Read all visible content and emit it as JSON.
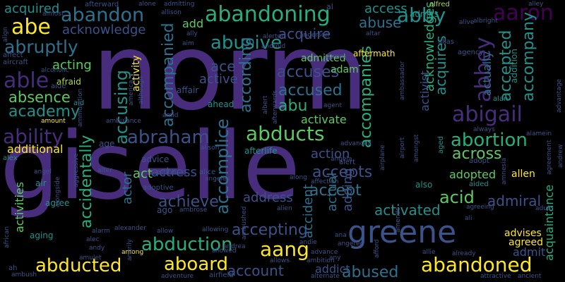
{
  "background": "#000000",
  "palette": {
    "dark_purple": "#440154",
    "indigo": "#472d7b",
    "blue": "#3b528b",
    "slate": "#2c728e",
    "teal": "#21918c",
    "green": "#28ae80",
    "lime": "#5ec962",
    "yellow": "#fde725",
    "olive": "#addc30"
  },
  "words": [
    {
      "text": "norm",
      "color": "#472d7b"
    },
    {
      "text": "giselle",
      "color": "#472d7b"
    },
    {
      "text": "greene",
      "color": "#3b528b"
    },
    {
      "text": "abandoning",
      "color": "#28ae80"
    },
    {
      "text": "abandon",
      "color": "#2c728e"
    },
    {
      "text": "aaron",
      "color": "#440154"
    },
    {
      "text": "abby",
      "color": "#21918c"
    },
    {
      "text": "abe",
      "color": "#fde725"
    },
    {
      "text": "able",
      "color": "#472d7b"
    },
    {
      "text": "abusive",
      "color": "#21918c"
    },
    {
      "text": "abruptly",
      "color": "#2c728e"
    },
    {
      "text": "abuse",
      "color": "#2c728e"
    },
    {
      "text": "absence",
      "color": "#5ec962"
    },
    {
      "text": "academy",
      "color": "#21918c"
    },
    {
      "text": "ability",
      "color": "#472d7b"
    },
    {
      "text": "abraham",
      "color": "#3b528b"
    },
    {
      "text": "abducts",
      "color": "#5ec962"
    },
    {
      "text": "abigail",
      "color": "#472d7b"
    },
    {
      "text": "abortion",
      "color": "#28ae80"
    },
    {
      "text": "abbey",
      "color": "#472d7b"
    },
    {
      "text": "abduction",
      "color": "#28ae80"
    },
    {
      "text": "abducted",
      "color": "#fde725"
    },
    {
      "text": "aboard",
      "color": "#fde725"
    },
    {
      "text": "abandoned",
      "color": "#fde725"
    },
    {
      "text": "aang",
      "color": "#fde725"
    },
    {
      "text": "accusing",
      "color": "#21918c"
    },
    {
      "text": "according",
      "color": "#2c728e"
    },
    {
      "text": "accompanied",
      "color": "#2c728e"
    },
    {
      "text": "accomplice",
      "color": "#2c728e"
    },
    {
      "text": "accuses",
      "color": "#3b528b"
    },
    {
      "text": "accused",
      "color": "#2c728e"
    },
    {
      "text": "abu",
      "color": "#28ae80"
    },
    {
      "text": "accompanies",
      "color": "#28ae80"
    },
    {
      "text": "accompany",
      "color": "#21918c"
    },
    {
      "text": "accepted",
      "color": "#21918c"
    },
    {
      "text": "acquires",
      "color": "#21918c"
    },
    {
      "text": "acknowledges",
      "color": "#28ae80"
    },
    {
      "text": "accept",
      "color": "#2c728e"
    },
    {
      "text": "accepts",
      "color": "#3b528b"
    },
    {
      "text": "accepting",
      "color": "#3b528b"
    },
    {
      "text": "accidentally",
      "color": "#28ae80"
    },
    {
      "text": "activated",
      "color": "#21918c"
    },
    {
      "text": "abused",
      "color": "#2c728e"
    },
    {
      "text": "account",
      "color": "#3b528b"
    },
    {
      "text": "achieve",
      "color": "#3b528b"
    },
    {
      "text": "across",
      "color": "#5ec962"
    },
    {
      "text": "acid",
      "color": "#5ec962"
    },
    {
      "text": "admiral",
      "color": "#3b528b"
    },
    {
      "text": "acquaintance",
      "color": "#28ae80"
    },
    {
      "text": "acquired",
      "color": "#21918c"
    },
    {
      "text": "acknowledge",
      "color": "#3b528b"
    },
    {
      "text": "access",
      "color": "#21918c"
    },
    {
      "text": "acquire",
      "color": "#3b528b"
    },
    {
      "text": "acting",
      "color": "#5ec962"
    },
    {
      "text": "active",
      "color": "#3b528b"
    },
    {
      "text": "ace",
      "color": "#3b528b"
    },
    {
      "text": "action",
      "color": "#3b528b"
    },
    {
      "text": "actress",
      "color": "#3b528b"
    },
    {
      "text": "actor",
      "color": "#2c728e"
    },
    {
      "text": "act",
      "color": "#5ec962"
    },
    {
      "text": "address",
      "color": "#3b528b"
    },
    {
      "text": "actual",
      "color": "#2c728e"
    },
    {
      "text": "adding",
      "color": "#3b528b"
    },
    {
      "text": "accident",
      "color": "#2c728e"
    },
    {
      "text": "activist",
      "color": "#3b528b"
    },
    {
      "text": "actually",
      "color": "#2c728e"
    },
    {
      "text": "activities",
      "color": "#5ec962"
    },
    {
      "text": "additional",
      "color": "#fde725"
    },
    {
      "text": "activity",
      "color": "#fde725"
    },
    {
      "text": "addict",
      "color": "#3b528b"
    },
    {
      "text": "admit",
      "color": "#3b528b"
    },
    {
      "text": "adopted",
      "color": "#5ec962"
    },
    {
      "text": "advises",
      "color": "#fde725"
    },
    {
      "text": "agreed",
      "color": "#fde725"
    },
    {
      "text": "allen",
      "color": "#fde725"
    },
    {
      "text": "add",
      "color": "#5ec962"
    },
    {
      "text": "adam",
      "color": "#5ec962"
    },
    {
      "text": "admitted",
      "color": "#5ec962"
    },
    {
      "text": "activate",
      "color": "#5ec962"
    },
    {
      "text": "affair",
      "color": "#3b528b"
    },
    {
      "text": "afraid",
      "color": "#addc30"
    },
    {
      "text": "ahead",
      "color": "#21918c"
    },
    {
      "text": "advice",
      "color": "#3b528b"
    },
    {
      "text": "age",
      "color": "#3b528b"
    },
    {
      "text": "ago",
      "color": "#3b528b"
    },
    {
      "text": "alpha",
      "color": "#3b528b"
    },
    {
      "text": "alice",
      "color": "#3b528b"
    },
    {
      "text": "agree",
      "color": "#21918c"
    },
    {
      "text": "aging",
      "color": "#21918c"
    },
    {
      "text": "also",
      "color": "#21918c"
    },
    {
      "text": "admits",
      "color": "#21918c"
    },
    {
      "text": "alfred",
      "color": "#addc30"
    },
    {
      "text": "aftermath",
      "color": "#fde725"
    },
    {
      "text": "afterlife",
      "color": "#21918c"
    },
    {
      "text": "aid",
      "color": "#21918c"
    },
    {
      "text": "aided",
      "color": "#21918c"
    },
    {
      "text": "aged",
      "color": "#21918c"
    },
    {
      "text": "adopt",
      "color": "#3b528b"
    },
    {
      "text": "alan",
      "color": "#21918c"
    },
    {
      "text": "alias",
      "color": "#3b528b"
    },
    {
      "text": "agency",
      "color": "#3b528b"
    },
    {
      "text": "addition",
      "color": "#21918c"
    },
    {
      "text": "aircraft",
      "color": "#3b528b"
    },
    {
      "text": "affect",
      "color": "#3b528b"
    },
    {
      "text": "aide",
      "color": "#3b528b"
    },
    {
      "text": "adoptive",
      "color": "#3b528b"
    },
    {
      "text": "alert",
      "color": "#3b528b"
    },
    {
      "text": "alex",
      "color": "#21918c"
    },
    {
      "text": "air",
      "color": "#21918c"
    },
    {
      "text": "afterward",
      "color": "#3b528b"
    },
    {
      "text": "almost",
      "color": "#3b528b"
    },
    {
      "text": "alone",
      "color": "#3b528b"
    },
    {
      "text": "admitting",
      "color": "#3b528b"
    },
    {
      "text": "allison",
      "color": "#3b528b"
    },
    {
      "text": "alley",
      "color": "#3b528b"
    },
    {
      "text": "alive",
      "color": "#3b528b"
    },
    {
      "text": "albright",
      "color": "#3b528b"
    },
    {
      "text": "al",
      "color": "#3b528b"
    },
    {
      "text": "align",
      "color": "#3b528b"
    },
    {
      "text": "ally",
      "color": "#3b528b"
    },
    {
      "text": "alerted",
      "color": "#3b528b"
    },
    {
      "text": "android",
      "color": "#3b528b"
    },
    {
      "text": "aim",
      "color": "#3b528b"
    },
    {
      "text": "anderson",
      "color": "#3b528b"
    },
    {
      "text": "altar",
      "color": "#3b528b"
    },
    {
      "text": "agrees",
      "color": "#3b528b"
    },
    {
      "text": "alcoholic",
      "color": "#3b528b"
    },
    {
      "text": "although",
      "color": "#3b528b"
    },
    {
      "text": "america",
      "color": "#3b528b"
    },
    {
      "text": "albert",
      "color": "#3b528b"
    },
    {
      "text": "afterwards",
      "color": "#3b528b"
    },
    {
      "text": "ambassador",
      "color": "#3b528b"
    },
    {
      "text": "agent",
      "color": "#3b528b"
    },
    {
      "text": "amid",
      "color": "#3b528b"
    },
    {
      "text": "ambulance",
      "color": "#3b528b"
    },
    {
      "text": "amount",
      "color": "#fde725"
    },
    {
      "text": "ammunition",
      "color": "#3b528b"
    },
    {
      "text": "advantage",
      "color": "#3b528b"
    },
    {
      "text": "always",
      "color": "#3b528b"
    },
    {
      "text": "alamein",
      "color": "#3b528b"
    },
    {
      "text": "advanced",
      "color": "#3b528b"
    },
    {
      "text": "airport",
      "color": "#3b528b"
    },
    {
      "text": "amongst",
      "color": "#3b528b"
    },
    {
      "text": "angela",
      "color": "#3b528b"
    },
    {
      "text": "airplane",
      "color": "#3b528b"
    },
    {
      "text": "alison",
      "color": "#3b528b"
    },
    {
      "text": "angel",
      "color": "#3b528b"
    },
    {
      "text": "alter",
      "color": "#3b528b"
    },
    {
      "text": "aggressive",
      "color": "#3b528b"
    },
    {
      "text": "angeles",
      "color": "#3b528b"
    },
    {
      "text": "along",
      "color": "#3b528b"
    },
    {
      "text": "affection",
      "color": "#3b528b"
    },
    {
      "text": "amnesia",
      "color": "#3b528b"
    },
    {
      "text": "andrew",
      "color": "#3b528b"
    },
    {
      "text": "agreement",
      "color": "#3b528b"
    },
    {
      "text": "alongside",
      "color": "#3b528b"
    },
    {
      "text": "ambrose",
      "color": "#3b528b"
    },
    {
      "text": "alien",
      "color": "#3b528b"
    },
    {
      "text": "agreeing",
      "color": "#3b528b"
    },
    {
      "text": "adult",
      "color": "#3b528b"
    },
    {
      "text": "ali",
      "color": "#3b528b"
    },
    {
      "text": "alarm",
      "color": "#3b528b"
    },
    {
      "text": "alexander",
      "color": "#3b528b"
    },
    {
      "text": "allow",
      "color": "#3b528b"
    },
    {
      "text": "allowing",
      "color": "#3b528b"
    },
    {
      "text": "ana",
      "color": "#3b528b"
    },
    {
      "text": "alec",
      "color": "#3b528b"
    },
    {
      "text": "ambushed",
      "color": "#3b528b"
    },
    {
      "text": "andrea",
      "color": "#3b528b"
    },
    {
      "text": "andie",
      "color": "#3b528b"
    },
    {
      "text": "angered",
      "color": "#3b528b"
    },
    {
      "text": "advance",
      "color": "#3b528b"
    },
    {
      "text": "amends",
      "color": "#3b528b"
    },
    {
      "text": "allie",
      "color": "#3b528b"
    },
    {
      "text": "already",
      "color": "#3b528b"
    },
    {
      "text": "african",
      "color": "#3b528b"
    },
    {
      "text": "andy",
      "color": "#3b528b"
    },
    {
      "text": "among",
      "color": "#fde725"
    },
    {
      "text": "angrily",
      "color": "#3b528b"
    },
    {
      "text": "amulet",
      "color": "#3b528b"
    },
    {
      "text": "allowed",
      "color": "#3b528b"
    },
    {
      "text": "ah",
      "color": "#3b528b"
    },
    {
      "text": "allows",
      "color": "#3b528b"
    },
    {
      "text": "ambition",
      "color": "#3b528b"
    },
    {
      "text": "any",
      "color": "#3b528b"
    },
    {
      "text": "afford",
      "color": "#3b528b"
    },
    {
      "text": "ambush",
      "color": "#3b528b"
    },
    {
      "text": "adventure",
      "color": "#3b528b"
    },
    {
      "text": "airfield",
      "color": "#3b528b"
    },
    {
      "text": "alternate",
      "color": "#3b528b"
    },
    {
      "text": "ancient",
      "color": "#3b528b"
    },
    {
      "text": "attractive",
      "color": "#3b528b"
    }
  ]
}
